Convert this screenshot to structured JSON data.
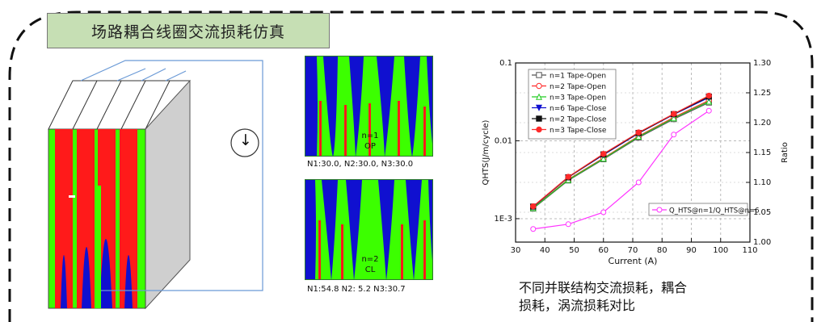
{
  "title": "场路耦合线圈交流损耗仿真",
  "sim_top": {
    "label_n": "n=1",
    "label_mode": "OP",
    "caption": "N1:30.0,  N2:30.0, N3:30.0"
  },
  "sim_bottom": {
    "label_n": "n=2",
    "label_mode": "CL",
    "caption": "N1:54.8  N2: 5.2   N3:30.7"
  },
  "circuit": {
    "source_symbol": "↓"
  },
  "bottom_text": {
    "line1": "不同并联结构交流损耗，耦合",
    "line2": "损耗，涡流损耗对比"
  },
  "colors": {
    "field_green": "#3cff00",
    "field_blue": "#1010d0",
    "field_red": "#ff1a1a",
    "title_bg": "#c6dfb4"
  },
  "chart_data": {
    "type": "line",
    "xlabel": "Current (A)",
    "ylabel_left": "QHTS(J/m/cycle)",
    "ylabel_right": "Ratio",
    "x_ticks": [
      "30",
      "40",
      "50",
      "60",
      "70",
      "80",
      "90",
      "100",
      "110"
    ],
    "y_left_ticks": [
      "1E-3",
      "0.01",
      "0.1"
    ],
    "y_right_ticks": [
      "1.00",
      "1.05",
      "1.10",
      "1.15",
      "1.20",
      "1.25",
      "1.30"
    ],
    "xlim": [
      30,
      110
    ],
    "ylim_left": [
      0.0005,
      0.1
    ],
    "ylim_right": [
      1.0,
      1.3
    ],
    "y_left_scale": "log",
    "grid": true,
    "legend_main": [
      {
        "label": "n=1 Tape-Open",
        "color": "#555555",
        "marker": "square-open"
      },
      {
        "label": "n=2 Tape-Open",
        "color": "#ff2a2a",
        "marker": "circle-open"
      },
      {
        "label": "n=3 Tape-Open",
        "color": "#22cc22",
        "marker": "triangle-open"
      },
      {
        "label": "n=6 Tape-Close",
        "color": "#1010d0",
        "marker": "triangle-down"
      },
      {
        "label": "n=2 Tape-Close",
        "color": "#111111",
        "marker": "square"
      },
      {
        "label": "n=3 Tape-Close",
        "color": "#ff2a2a",
        "marker": "circle"
      }
    ],
    "legend_ratio": "Q_HTS@n=1/Q_HTS@n=6",
    "x": [
      36,
      48,
      60,
      72,
      84,
      96
    ],
    "series": [
      {
        "name": "n=1 Tape-Open",
        "values": [
          0.00135,
          0.0031,
          0.0058,
          0.011,
          0.019,
          0.031
        ]
      },
      {
        "name": "n=2 Tape-Open",
        "values": [
          0.00138,
          0.0032,
          0.006,
          0.0115,
          0.02,
          0.033
        ]
      },
      {
        "name": "n=3 Tape-Open",
        "values": [
          0.00137,
          0.00315,
          0.0059,
          0.0113,
          0.0195,
          0.032
        ]
      },
      {
        "name": "n=6 Tape-Close",
        "values": [
          0.00142,
          0.0034,
          0.0066,
          0.0125,
          0.0218,
          0.036
        ]
      },
      {
        "name": "n=2 Tape-Close",
        "values": [
          0.00143,
          0.0034,
          0.0067,
          0.0126,
          0.022,
          0.037
        ]
      },
      {
        "name": "n=3 Tape-Close",
        "values": [
          0.00144,
          0.00345,
          0.0068,
          0.0128,
          0.0222,
          0.038
        ]
      }
    ],
    "ratio_series": {
      "name": "Q_HTS@n=1/Q_HTS@n=6",
      "values": [
        1.022,
        1.03,
        1.05,
        1.1,
        1.18,
        1.22
      ]
    }
  }
}
